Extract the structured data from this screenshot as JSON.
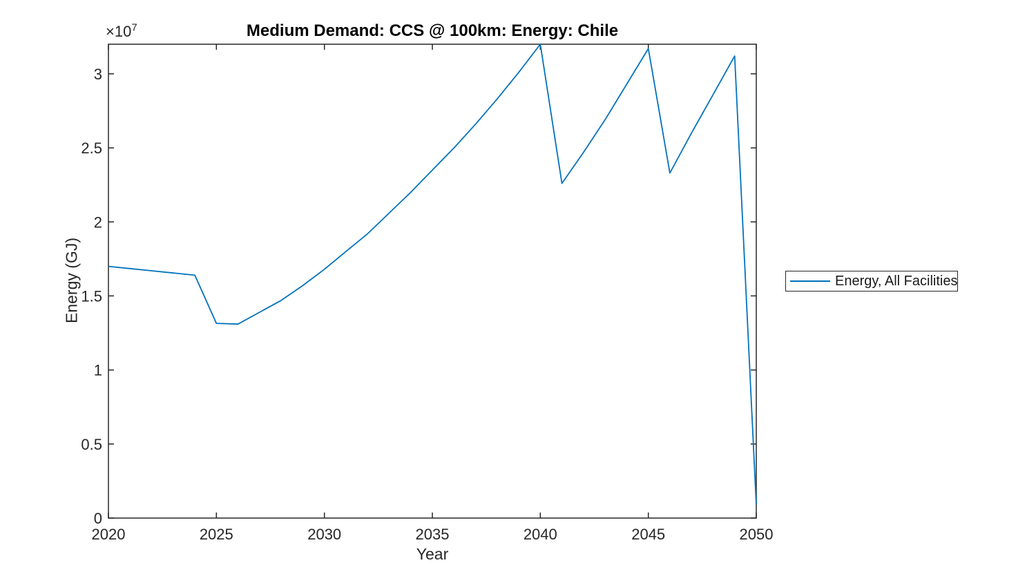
{
  "colors": {
    "line": "#0072BD",
    "axis": "#262626",
    "text": "#262626",
    "title": "#000000",
    "background": "#ffffff"
  },
  "chart_data": {
    "type": "line",
    "title": "Medium Demand: CCS @ 100km: Energy: Chile",
    "xlabel": "Year",
    "ylabel": "Energy (GJ)",
    "y_offset": {
      "base": "×10",
      "exp": "7"
    },
    "grid": false,
    "box": true,
    "legend_position": "outside-right",
    "xlim": [
      2020,
      2050
    ],
    "ylim": [
      0,
      32000000
    ],
    "x_ticks": [
      2020,
      2025,
      2030,
      2035,
      2040,
      2045,
      2050
    ],
    "x_tick_labels": [
      "2020",
      "2025",
      "2030",
      "2035",
      "2040",
      "2045",
      "2050"
    ],
    "y_ticks": [
      0,
      5000000,
      10000000,
      15000000,
      20000000,
      25000000,
      30000000
    ],
    "y_tick_labels": [
      "0",
      "0.5",
      "1",
      "1.5",
      "2",
      "2.5",
      "3"
    ],
    "x": [
      2020,
      2021,
      2022,
      2023,
      2024,
      2025,
      2026,
      2027,
      2028,
      2029,
      2030,
      2031,
      2032,
      2033,
      2034,
      2035,
      2036,
      2037,
      2038,
      2039,
      2040,
      2041,
      2042,
      2043,
      2044,
      2045,
      2046,
      2047,
      2048,
      2049,
      2050
    ],
    "series": [
      {
        "name": "Energy, All Facilities",
        "color": "#0072BD",
        "values": [
          17000000,
          16850000,
          16700000,
          16550000,
          16400000,
          13150000,
          13100000,
          13900000,
          14700000,
          15700000,
          16800000,
          18000000,
          19200000,
          20600000,
          22000000,
          23500000,
          25000000,
          26600000,
          28300000,
          30100000,
          32000000,
          22600000,
          24700000,
          26900000,
          29300000,
          31700000,
          23300000,
          26000000,
          28600000,
          31200000,
          900000
        ]
      }
    ]
  }
}
